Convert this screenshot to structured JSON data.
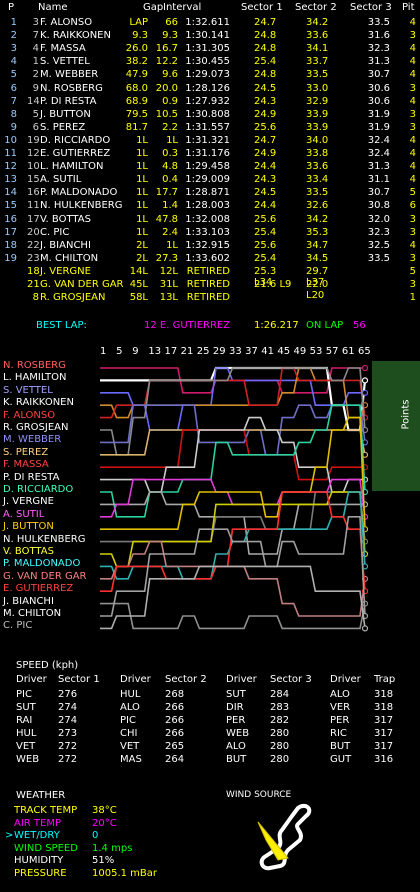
{
  "timing": {
    "headers": {
      "p": "P",
      "name": "Name",
      "gap": "Gap",
      "interval": "Interval",
      "s1": "Sector 1",
      "s2": "Sector 2",
      "s3": "Sector 3",
      "pit": "Pit"
    },
    "rows": [
      {
        "pos": "1",
        "num": "3",
        "name": "F. ALONSO",
        "gap": "LAP",
        "int": "66",
        "lap": "1:32.611",
        "s1": "24.7",
        "s2": "34.2",
        "s3": "33.5",
        "pit": "4",
        "gapcol": "#ff0",
        "namecol": "#fff"
      },
      {
        "pos": "2",
        "num": "7",
        "name": "K. RAIKKONEN",
        "gap": "9.3",
        "int": "9.3",
        "lap": "1:30.141",
        "s1": "24.8",
        "s2": "33.6",
        "s3": "31.6",
        "pit": "3",
        "gapcol": "#ff0",
        "namecol": "#fff"
      },
      {
        "pos": "3",
        "num": "4",
        "name": "F. MASSA",
        "gap": "26.0",
        "int": "16.7",
        "lap": "1:31.305",
        "s1": "24.8",
        "s2": "34.1",
        "s3": "32.3",
        "pit": "4",
        "gapcol": "#ff0",
        "namecol": "#fff"
      },
      {
        "pos": "4",
        "num": "1",
        "name": "S. VETTEL",
        "gap": "38.2",
        "int": "12.2",
        "lap": "1:30.455",
        "s1": "25.4",
        "s2": "33.7",
        "s3": "31.3",
        "pit": "4",
        "gapcol": "#ff0",
        "namecol": "#fff"
      },
      {
        "pos": "5",
        "num": "2",
        "name": "M. WEBBER",
        "gap": "47.9",
        "int": "9.6",
        "lap": "1:29.073",
        "s1": "24.8",
        "s2": "33.5",
        "s3": "30.7",
        "pit": "4",
        "gapcol": "#ff0",
        "namecol": "#fff"
      },
      {
        "pos": "6",
        "num": "9",
        "name": "N. ROSBERG",
        "gap": "68.0",
        "int": "20.0",
        "lap": "1:28.126",
        "s1": "24.5",
        "s2": "33.0",
        "s3": "30.6",
        "pit": "3",
        "gapcol": "#ff0",
        "namecol": "#fff"
      },
      {
        "pos": "7",
        "num": "14",
        "name": "P. DI RESTA",
        "gap": "68.9",
        "int": "0.9",
        "lap": "1:27.932",
        "s1": "24.3",
        "s2": "32.9",
        "s3": "30.6",
        "pit": "4",
        "gapcol": "#ff0",
        "namecol": "#fff"
      },
      {
        "pos": "8",
        "num": "5",
        "name": "J. BUTTON",
        "gap": "79.5",
        "int": "10.5",
        "lap": "1:30.808",
        "s1": "24.9",
        "s2": "33.9",
        "s3": "31.9",
        "pit": "3",
        "gapcol": "#ff0",
        "namecol": "#fff"
      },
      {
        "pos": "9",
        "num": "6",
        "name": "S. PEREZ",
        "gap": "81.7",
        "int": "2.2",
        "lap": "1:31.557",
        "s1": "25.6",
        "s2": "33.9",
        "s3": "31.9",
        "pit": "3",
        "gapcol": "#ff0",
        "namecol": "#fff"
      },
      {
        "pos": "10",
        "num": "19",
        "name": "D. RICCIARDO",
        "gap": "1L",
        "int": "1L",
        "lap": "1:31.321",
        "s1": "24.7",
        "s2": "34.0",
        "s3": "32.4",
        "pit": "4",
        "gapcol": "#ff0",
        "namecol": "#fff"
      },
      {
        "pos": "11",
        "num": "12",
        "name": "E. GUTIERREZ",
        "gap": "1L",
        "int": "0.3",
        "lap": "1:31.176",
        "s1": "24.9",
        "s2": "33.8",
        "s3": "32.4",
        "pit": "4",
        "gapcol": "#ff0",
        "namecol": "#fff"
      },
      {
        "pos": "12",
        "num": "10",
        "name": "L. HAMILTON",
        "gap": "1L",
        "int": "4.8",
        "lap": "1:29.458",
        "s1": "24.4",
        "s2": "33.6",
        "s3": "31.3",
        "pit": "4",
        "gapcol": "#ff0",
        "namecol": "#fff"
      },
      {
        "pos": "13",
        "num": "15",
        "name": "A. SUTIL",
        "gap": "1L",
        "int": "0.4",
        "lap": "1:29.009",
        "s1": "24.3",
        "s2": "33.4",
        "s3": "31.1",
        "pit": "4",
        "gapcol": "#ff0",
        "namecol": "#fff"
      },
      {
        "pos": "14",
        "num": "16",
        "name": "P. MALDONADO",
        "gap": "1L",
        "int": "17.7",
        "lap": "1:28.871",
        "s1": "24.5",
        "s2": "33.5",
        "s3": "30.7",
        "pit": "5",
        "gapcol": "#ff0",
        "namecol": "#fff"
      },
      {
        "pos": "15",
        "num": "11",
        "name": "N. HULKENBERG",
        "gap": "1L",
        "int": "1.4",
        "lap": "1:28.003",
        "s1": "24.4",
        "s2": "32.6",
        "s3": "30.8",
        "pit": "6",
        "gapcol": "#ff0",
        "namecol": "#fff"
      },
      {
        "pos": "16",
        "num": "17",
        "name": "V. BOTTAS",
        "gap": "1L",
        "int": "47.8",
        "lap": "1:32.008",
        "s1": "25.6",
        "s2": "34.2",
        "s3": "32.0",
        "pit": "3",
        "gapcol": "#ff0",
        "namecol": "#fff"
      },
      {
        "pos": "17",
        "num": "20",
        "name": "C. PIC",
        "gap": "1L",
        "int": "2.4",
        "lap": "1:33.103",
        "s1": "25.4",
        "s2": "35.3",
        "s3": "32.3",
        "pit": "3",
        "gapcol": "#ff0",
        "namecol": "#fff"
      },
      {
        "pos": "18",
        "num": "22",
        "name": "J. BIANCHI",
        "gap": "2L",
        "int": "1L",
        "lap": "1:32.915",
        "s1": "25.6",
        "s2": "34.7",
        "s3": "32.5",
        "pit": "4",
        "gapcol": "#ff0",
        "namecol": "#fff"
      },
      {
        "pos": "19",
        "num": "23",
        "name": "M. CHILTON",
        "gap": "2L",
        "int": "27.3",
        "lap": "1:33.602",
        "s1": "25.4",
        "s2": "34.5",
        "s3": "33.5",
        "pit": "3",
        "gapcol": "#ff0",
        "namecol": "#fff"
      },
      {
        "pos": "",
        "num": "18",
        "name": "J. VERGNE",
        "gap": "14L",
        "int": "12L",
        "lap": "RETIRED",
        "s1": "25.3 L34",
        "s2": "29.7 L37",
        "s3": "",
        "pit": "5",
        "gapcol": "#ff0",
        "namecol": "#ff0"
      },
      {
        "pos": "",
        "num": "21",
        "name": "G. VAN DER GAR",
        "gap": "45L",
        "int": "31L",
        "lap": "RETIRED",
        "s1": "21.6  L9",
        "s2": "22.0 L20",
        "s3": "",
        "pit": "3",
        "gapcol": "#ff0",
        "namecol": "#ff0"
      },
      {
        "pos": "",
        "num": "8",
        "name": "R. GROSJEAN",
        "gap": "58L",
        "int": "13L",
        "lap": "RETIRED",
        "s1": "",
        "s2": "",
        "s3": "",
        "pit": "1",
        "gapcol": "#ff0",
        "namecol": "#ff0"
      }
    ]
  },
  "best_lap": {
    "label": "BEST LAP:",
    "driver": "12 E. GUTIERREZ",
    "time": "1:26.217",
    "on_lap_label": "ON LAP",
    "lap": "56"
  },
  "chart_data": {
    "type": "line",
    "x_ticks": [
      "1",
      "5",
      "9",
      "13",
      "17",
      "21",
      "25",
      "29",
      "33",
      "37",
      "41",
      "45",
      "49",
      "53",
      "57",
      "61",
      "65"
    ],
    "panel_label": "Points",
    "drivers": [
      {
        "name": "N. ROSBERG",
        "color": "#ff6060"
      },
      {
        "name": "L. HAMILTON",
        "color": "#ffffff"
      },
      {
        "name": "S. VETTEL",
        "color": "#a0a0ff"
      },
      {
        "name": "K. RAIKKONEN",
        "color": "#ffffff"
      },
      {
        "name": "F. ALONSO",
        "color": "#ff4040"
      },
      {
        "name": "R. GROSJEAN",
        "color": "#ffffff"
      },
      {
        "name": "M. WEBBER",
        "color": "#9090ff"
      },
      {
        "name": "S. PEREZ",
        "color": "#ffd080"
      },
      {
        "name": "F. MASSA",
        "color": "#ff4040"
      },
      {
        "name": "P. DI RESTA",
        "color": "#ffffff"
      },
      {
        "name": "D. RICCIARDO",
        "color": "#40ffc0"
      },
      {
        "name": "J. VERGNE",
        "color": "#ffffff"
      },
      {
        "name": "A. SUTIL",
        "color": "#ff60ff"
      },
      {
        "name": "J. BUTTON",
        "color": "#ffd000"
      },
      {
        "name": "N. HULKENBERG",
        "color": "#ffffff"
      },
      {
        "name": "V. BOTTAS",
        "color": "#ffff40"
      },
      {
        "name": "P. MALDONADO",
        "color": "#40ffff"
      },
      {
        "name": "G. VAN DER GAR",
        "color": "#ff8080"
      },
      {
        "name": "E. GUTIERREZ",
        "color": "#ff4040"
      },
      {
        "name": "J. BIANCHI",
        "color": "#ffffff"
      },
      {
        "name": "M. CHILTON",
        "color": "#ffffff"
      },
      {
        "name": "C. PIC",
        "color": "#c0c0c0"
      }
    ],
    "line_colors": [
      "#d11b6b",
      "#ffffff",
      "#6a6aff",
      "#cf8a2a",
      "#cf2222",
      "#8a8a8a",
      "#6f6fc8",
      "#d8b36a",
      "#cf1111",
      "#cccccc",
      "#2ad1a1",
      "#aaaaaa",
      "#e03ad8",
      "#e0c000",
      "#7a7a7a",
      "#d0d000",
      "#30b0b0",
      "#c08080",
      "#ff3030",
      "#909090",
      "#a0a0a0",
      "#b0b0b0"
    ]
  },
  "speed": {
    "title": "SPEED (kph)",
    "headers": [
      "Driver",
      "Sector 1",
      "Driver",
      "Sector 2",
      "Driver",
      "Sector 3",
      "Driver",
      "Trap"
    ],
    "rows": [
      [
        "PIC",
        "276",
        "HUL",
        "268",
        "SUT",
        "284",
        "ALO",
        "318"
      ],
      [
        "SUT",
        "274",
        "ALO",
        "266",
        "DIR",
        "283",
        "VER",
        "318"
      ],
      [
        "RAI",
        "274",
        "PIC",
        "266",
        "PER",
        "282",
        "PER",
        "317"
      ],
      [
        "HUL",
        "273",
        "CHI",
        "266",
        "WEB",
        "280",
        "RIC",
        "317"
      ],
      [
        "VET",
        "272",
        "VET",
        "265",
        "ALO",
        "280",
        "BUT",
        "317"
      ],
      [
        "WEB",
        "272",
        "MAS",
        "264",
        "BUT",
        "280",
        "GUT",
        "316"
      ]
    ]
  },
  "weather": {
    "title": "WEATHER",
    "wind_source_label": "WIND SOURCE",
    "items": [
      {
        "label": "TRACK TEMP",
        "value": "38°C",
        "labelcol": "#ff0",
        "valcol": "#ff0"
      },
      {
        "label": "AIR TEMP",
        "value": "20°C",
        "labelcol": "#f0f",
        "valcol": "#f0f"
      },
      {
        "label": "WET/DRY",
        "value": "0",
        "labelcol": "#0ff",
        "valcol": "#0ff",
        "prefix": ">"
      },
      {
        "label": "WIND SPEED",
        "value": "1.4 mps",
        "labelcol": "#0f0",
        "valcol": "#0f0"
      },
      {
        "label": "HUMIDITY",
        "value": "51%",
        "labelcol": "#fff",
        "valcol": "#fff"
      },
      {
        "label": "PRESSURE",
        "value": "1005.1 mBar",
        "labelcol": "#ff0",
        "valcol": "#ff0"
      }
    ]
  }
}
